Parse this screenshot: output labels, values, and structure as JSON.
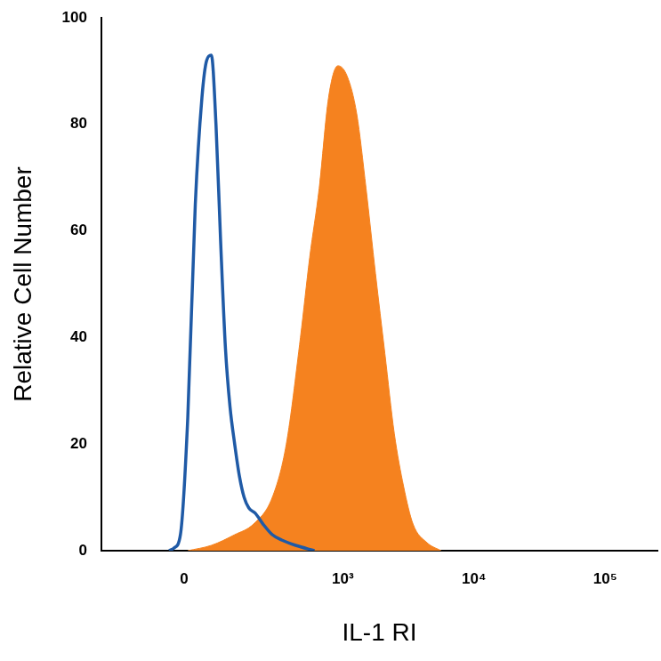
{
  "chart_data": {
    "type": "line",
    "x_label": "IL-1 RI",
    "y_label": "Relative Cell Number",
    "log": "x",
    "grid": false,
    "xlim": [
      -250,
      250000
    ],
    "xticks": [
      0,
      {
        "value": 1000,
        "label": "10³"
      },
      {
        "value": 10000,
        "label": "10⁴"
      },
      {
        "value": 100000,
        "label": "10⁵"
      }
    ],
    "ylim": [
      0,
      100
    ],
    "yticks": [
      0,
      20,
      40,
      60,
      80,
      100
    ],
    "series": [
      {
        "color": "#1f5aa6",
        "line_style": "solid",
        "x": [
          -33,
          -22,
          -8,
          8,
          24.5,
          39.4,
          50.3,
          61.5,
          73,
          85,
          98,
          111,
          125,
          140,
          156,
          173,
          199,
          232,
          278,
          332,
          430,
          604
        ],
        "values": [
          0,
          0.5,
          3,
          25,
          65,
          85,
          92,
          93,
          80,
          58,
          38,
          27,
          20,
          14,
          10,
          8,
          7,
          5,
          3,
          2,
          1,
          0
        ]
      },
      {
        "color": "#f5821f",
        "type": "area",
        "x": [
          8,
          61.5,
          125,
          191,
          278,
          362,
          469,
          554,
          657,
          776,
          916,
          1081,
          1277,
          1505,
          1777,
          2096,
          2473,
          2915,
          3436,
          4393,
          5620
        ],
        "values": [
          0,
          1,
          3,
          5,
          10,
          20,
          40,
          55,
          68,
          85,
          91,
          89,
          82,
          68,
          52,
          37,
          22,
          12,
          5,
          1.5,
          0
        ]
      }
    ]
  }
}
